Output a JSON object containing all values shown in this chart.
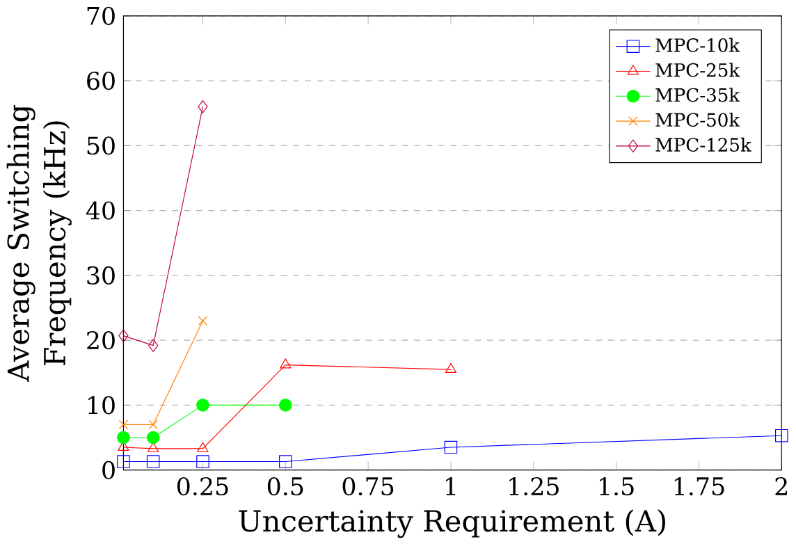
{
  "chart_data": {
    "type": "line",
    "xlabel": "Uncertainty Requirement (A)",
    "ylabel": "Average Switching Frequency (kHz)",
    "xlim": [
      0.01,
      2
    ],
    "ylim": [
      0,
      70
    ],
    "xticks": [
      0.25,
      0.5,
      0.75,
      1,
      1.25,
      1.5,
      1.75,
      2
    ],
    "yticks": [
      0,
      10,
      20,
      30,
      40,
      50,
      60,
      70
    ],
    "grid": "y",
    "legend": "top right",
    "series": [
      {
        "name": "MPC-10k",
        "color": "#0000ff",
        "marker": "square",
        "x": [
          0.01,
          0.1,
          0.25,
          0.5,
          1,
          2
        ],
        "values": [
          1.3,
          1.3,
          1.3,
          1.3,
          3.5,
          5.3
        ]
      },
      {
        "name": "MPC-25k",
        "color": "#ff0000",
        "marker": "triangle",
        "x": [
          0.01,
          0.1,
          0.25,
          0.5,
          1
        ],
        "values": [
          3.5,
          3.3,
          3.3,
          16.2,
          15.5
        ]
      },
      {
        "name": "MPC-35k",
        "color": "#00ff00",
        "marker": "circle",
        "x": [
          0.01,
          0.1,
          0.25,
          0.5
        ],
        "values": [
          5,
          5,
          10,
          10
        ]
      },
      {
        "name": "MPC-50k",
        "color": "#ff8000",
        "marker": "cross",
        "x": [
          0.01,
          0.1,
          0.25
        ],
        "values": [
          7,
          7,
          23
        ]
      },
      {
        "name": "MPC-125k",
        "color": "#bf0040",
        "marker": "diamond",
        "x": [
          0.01,
          0.1,
          0.25
        ],
        "values": [
          20.7,
          19.2,
          56
        ]
      }
    ]
  }
}
